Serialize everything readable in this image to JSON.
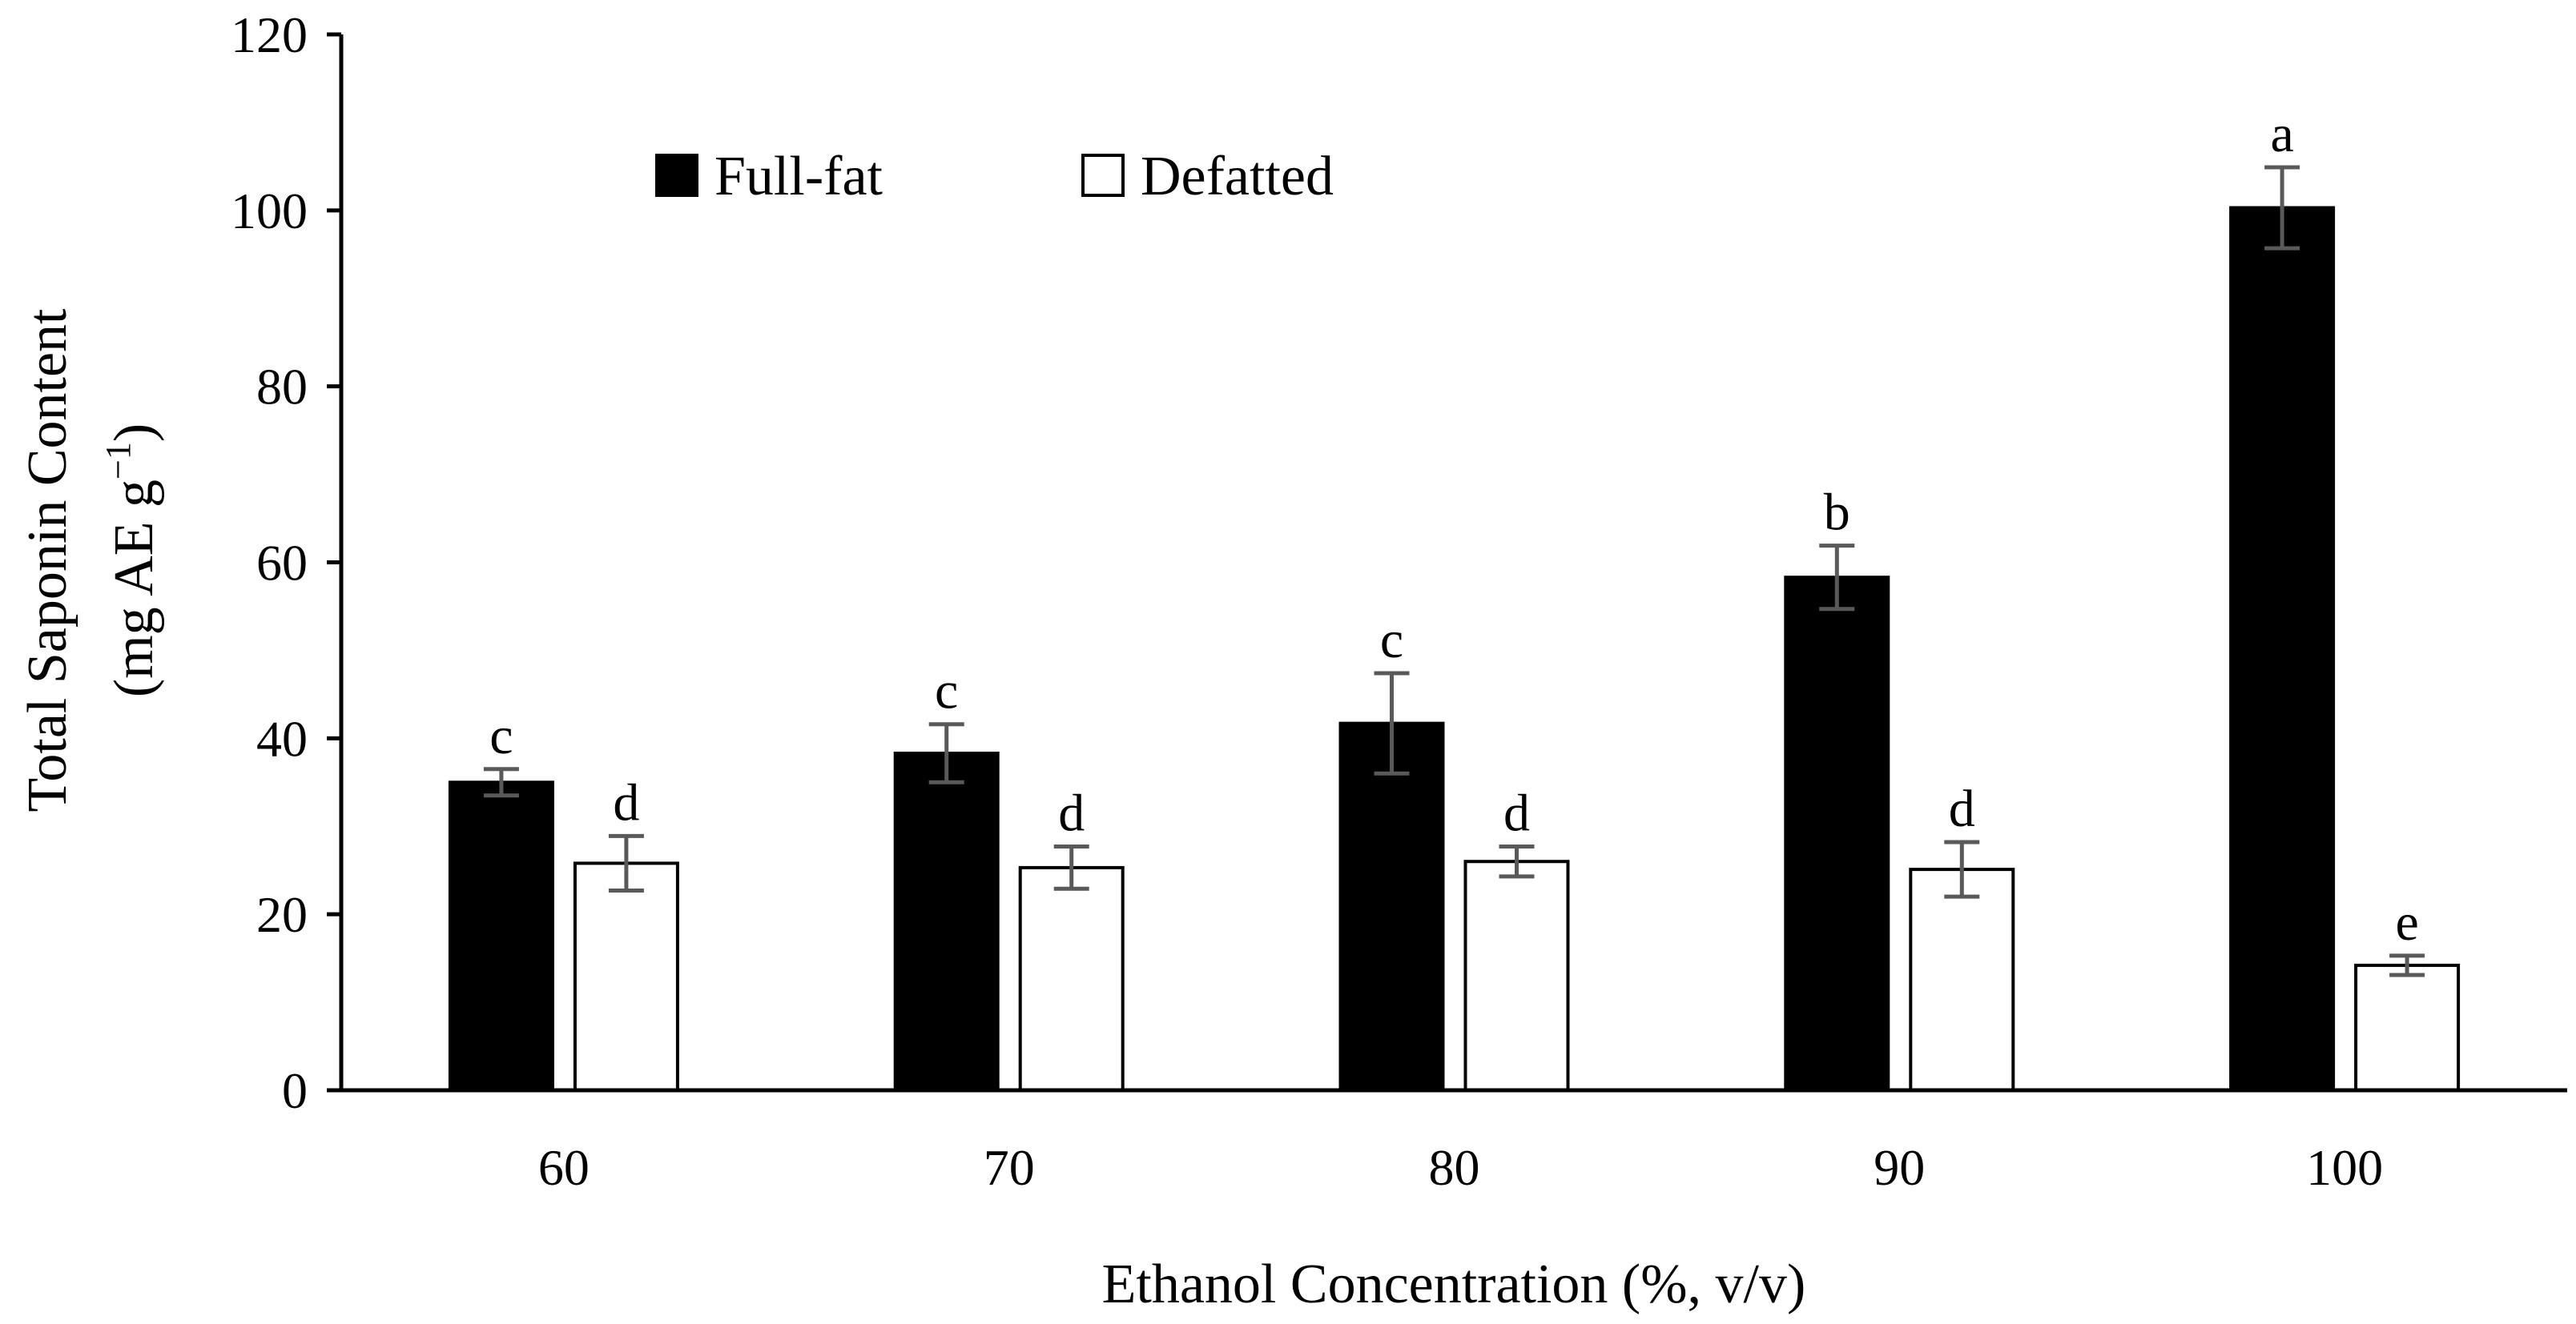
{
  "chart_data": {
    "type": "bar",
    "title": "",
    "xlabel": "Ethanol Concentration (%, v/v)",
    "ylabel": {
      "line1": "Total Saponin Content",
      "line2_prefix": "(mg AE g",
      "line2_sup": "−1",
      "line2_suffix": ")"
    },
    "categories": [
      "60",
      "70",
      "80",
      "90",
      "100"
    ],
    "ylim": [
      0,
      120
    ],
    "yticks": [
      "0",
      "20",
      "40",
      "60",
      "80",
      "100",
      "120"
    ],
    "grid": false,
    "legend_position": "top-left",
    "series": [
      {
        "name": "Full-fat",
        "color": "#000000",
        "values": [
          35,
          38.3,
          41.7,
          58.3,
          100.3
        ],
        "errors": [
          1.5,
          3.3,
          5.7,
          3.6,
          4.6
        ],
        "labels": [
          "c",
          "c",
          "c",
          "b",
          "a"
        ]
      },
      {
        "name": "Defatted",
        "color": "#ffffff",
        "values": [
          25.8,
          25.3,
          26,
          25.1,
          14.2
        ],
        "errors": [
          3.1,
          2.4,
          1.7,
          3.1,
          1.1
        ],
        "labels": [
          "d",
          "d",
          "d",
          "d",
          "e"
        ]
      }
    ]
  }
}
